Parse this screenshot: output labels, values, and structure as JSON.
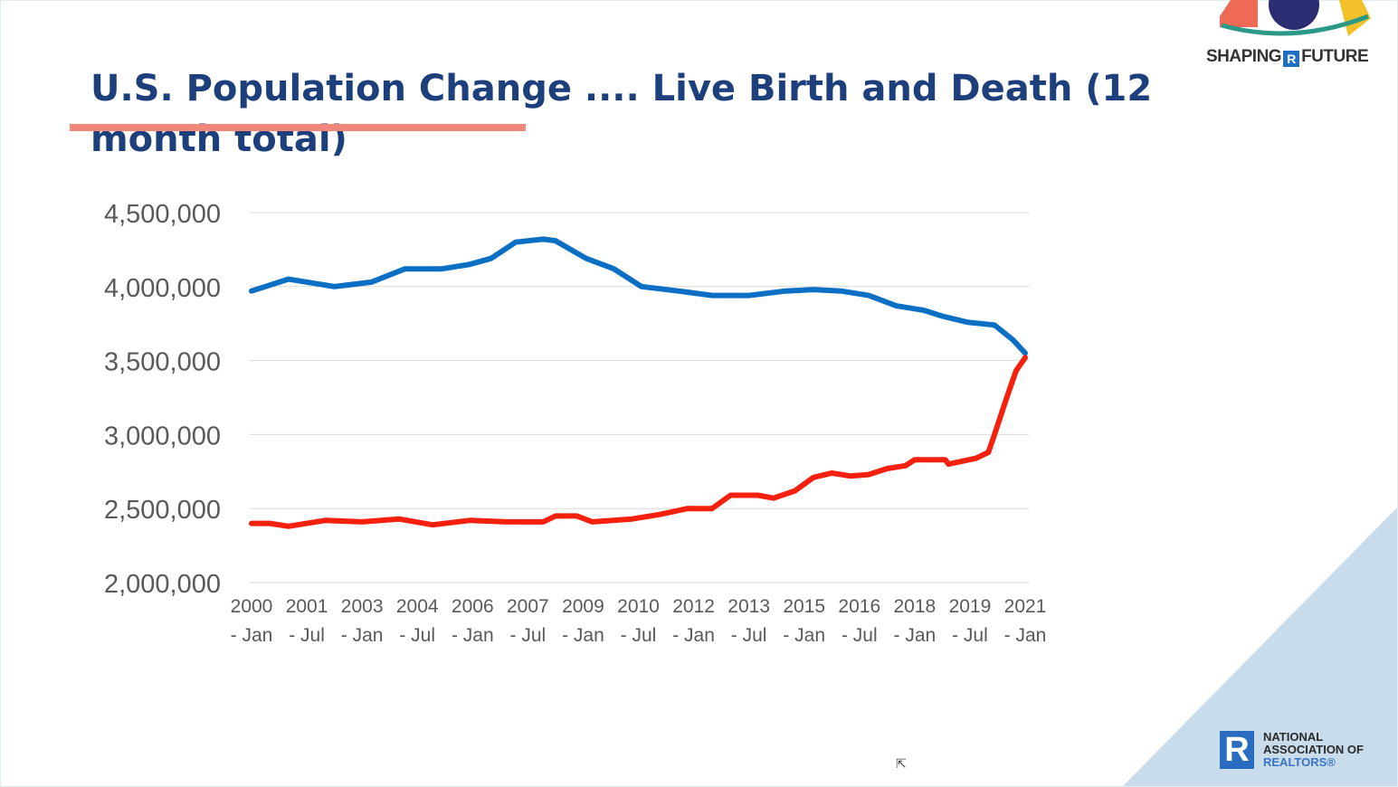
{
  "slide": {
    "title": "U.S. Population Change .... Live Birth and Death (12 month total)",
    "logo_top": {
      "left": "SHAPING",
      "mark": "R",
      "right": "FUTURE"
    },
    "logo_bottom": {
      "mark": "R",
      "line1": "NATIONAL",
      "line2": "ASSOCIATION OF",
      "line3": "REALTORS®"
    },
    "accent_color": "#f1877a",
    "title_color": "#1d3f7c"
  },
  "chart_data": {
    "type": "line",
    "title": "",
    "xlabel": "",
    "ylabel": "",
    "ylim": [
      2000000,
      4500000
    ],
    "xlim": [
      "2000-01",
      "2021-01"
    ],
    "grid": "horizontal",
    "legend": "none",
    "y_ticks": [
      "4,500,000",
      "4,000,000",
      "3,500,000",
      "3,000,000",
      "2,500,000",
      "2,000,000"
    ],
    "y_tick_values": [
      4500000,
      4000000,
      3500000,
      3000000,
      2500000,
      2000000
    ],
    "x_ticks": [
      {
        "year": "2000",
        "month": "- Jan",
        "date": "2000-01"
      },
      {
        "year": "2001",
        "month": "- Jul",
        "date": "2001-07"
      },
      {
        "year": "2003",
        "month": "- Jan",
        "date": "2003-01"
      },
      {
        "year": "2004",
        "month": "- Jul",
        "date": "2004-07"
      },
      {
        "year": "2006",
        "month": "- Jan",
        "date": "2006-01"
      },
      {
        "year": "2007",
        "month": "- Jul",
        "date": "2007-07"
      },
      {
        "year": "2009",
        "month": "- Jan",
        "date": "2009-01"
      },
      {
        "year": "2010",
        "month": "- Jul",
        "date": "2010-07"
      },
      {
        "year": "2012",
        "month": "- Jan",
        "date": "2012-01"
      },
      {
        "year": "2013",
        "month": "- Jul",
        "date": "2013-07"
      },
      {
        "year": "2015",
        "month": "- Jan",
        "date": "2015-01"
      },
      {
        "year": "2016",
        "month": "- Jul",
        "date": "2016-07"
      },
      {
        "year": "2018",
        "month": "- Jan",
        "date": "2018-01"
      },
      {
        "year": "2019",
        "month": "- Jul",
        "date": "2019-07"
      },
      {
        "year": "2021",
        "month": "- Jan",
        "date": "2021-01"
      }
    ],
    "series": [
      {
        "color": "#0b6fc4",
        "points": [
          [
            "2000-01",
            3970000
          ],
          [
            "2001-01",
            4050000
          ],
          [
            "2002-04",
            4000000
          ],
          [
            "2003-04",
            4030000
          ],
          [
            "2004-03",
            4120000
          ],
          [
            "2005-03",
            4120000
          ],
          [
            "2005-12",
            4150000
          ],
          [
            "2006-07",
            4190000
          ],
          [
            "2007-03",
            4300000
          ],
          [
            "2007-12",
            4320000
          ],
          [
            "2008-04",
            4310000
          ],
          [
            "2009-02",
            4190000
          ],
          [
            "2009-11",
            4120000
          ],
          [
            "2010-08",
            4000000
          ],
          [
            "2011-08",
            3970000
          ],
          [
            "2012-07",
            3940000
          ],
          [
            "2013-07",
            3940000
          ],
          [
            "2014-07",
            3970000
          ],
          [
            "2015-04",
            3980000
          ],
          [
            "2016-01",
            3970000
          ],
          [
            "2016-10",
            3940000
          ],
          [
            "2017-07",
            3870000
          ],
          [
            "2018-04",
            3840000
          ],
          [
            "2018-10",
            3800000
          ],
          [
            "2019-06",
            3760000
          ],
          [
            "2020-03",
            3740000
          ],
          [
            "2020-09",
            3640000
          ],
          [
            "2021-01",
            3550000
          ]
        ]
      },
      {
        "color": "#f5200e",
        "points": [
          [
            "2000-01",
            2400000
          ],
          [
            "2000-07",
            2400000
          ],
          [
            "2001-01",
            2380000
          ],
          [
            "2002-01",
            2420000
          ],
          [
            "2003-01",
            2410000
          ],
          [
            "2004-01",
            2430000
          ],
          [
            "2004-12",
            2390000
          ],
          [
            "2005-12",
            2420000
          ],
          [
            "2006-12",
            2410000
          ],
          [
            "2007-12",
            2410000
          ],
          [
            "2008-04",
            2450000
          ],
          [
            "2008-11",
            2450000
          ],
          [
            "2009-04",
            2410000
          ],
          [
            "2010-05",
            2430000
          ],
          [
            "2011-02",
            2460000
          ],
          [
            "2011-11",
            2500000
          ],
          [
            "2012-07",
            2500000
          ],
          [
            "2013-01",
            2590000
          ],
          [
            "2013-10",
            2590000
          ],
          [
            "2014-03",
            2570000
          ],
          [
            "2014-10",
            2620000
          ],
          [
            "2015-04",
            2710000
          ],
          [
            "2015-10",
            2740000
          ],
          [
            "2016-04",
            2720000
          ],
          [
            "2016-10",
            2730000
          ],
          [
            "2017-04",
            2770000
          ],
          [
            "2017-10",
            2790000
          ],
          [
            "2018-01",
            2830000
          ],
          [
            "2018-11",
            2830000
          ],
          [
            "2018-12",
            2800000
          ],
          [
            "2019-09",
            2840000
          ],
          [
            "2020-01",
            2880000
          ],
          [
            "2020-03",
            3000000
          ],
          [
            "2020-07",
            3250000
          ],
          [
            "2020-10",
            3430000
          ],
          [
            "2021-01",
            3520000
          ]
        ]
      }
    ]
  }
}
